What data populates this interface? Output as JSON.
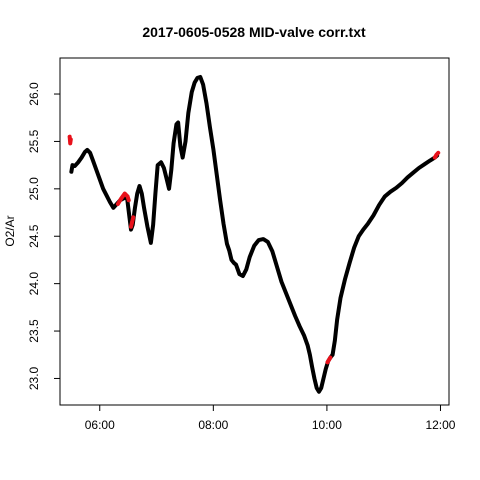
{
  "chart_data": {
    "type": "line",
    "title": "2017-0605-0528 MID-valve corr.txt",
    "xlabel": "",
    "ylabel": "O2/Ar",
    "x_ticks": [
      {
        "value": 6,
        "label": "06:00"
      },
      {
        "value": 8,
        "label": "08:00"
      },
      {
        "value": 10,
        "label": "10:00"
      },
      {
        "value": 12,
        "label": "12:00"
      }
    ],
    "y_ticks": [
      {
        "value": 23.0,
        "label": "23.0"
      },
      {
        "value": 23.5,
        "label": "23.5"
      },
      {
        "value": 24.0,
        "label": "24.0"
      },
      {
        "value": 24.5,
        "label": "24.5"
      },
      {
        "value": 25.0,
        "label": "25.0"
      },
      {
        "value": 25.5,
        "label": "25.5"
      },
      {
        "value": 26.0,
        "label": "26.0"
      }
    ],
    "xlim": [
      5.3,
      12.15
    ],
    "ylim": [
      22.72,
      26.38
    ],
    "grid": false,
    "series": [
      {
        "color": "#000000",
        "points": [
          [
            5.5,
            25.18
          ],
          [
            5.52,
            25.25
          ],
          [
            5.56,
            25.24
          ],
          [
            5.62,
            25.28
          ],
          [
            5.68,
            25.33
          ],
          [
            5.74,
            25.39
          ],
          [
            5.78,
            25.41
          ],
          [
            5.83,
            25.38
          ],
          [
            5.88,
            25.3
          ],
          [
            5.94,
            25.2
          ],
          [
            6.0,
            25.1
          ],
          [
            6.06,
            25.0
          ],
          [
            6.12,
            24.93
          ],
          [
            6.18,
            24.86
          ],
          [
            6.24,
            24.8
          ],
          [
            6.3,
            24.84
          ],
          [
            6.36,
            24.88
          ],
          [
            6.42,
            24.9
          ],
          [
            6.48,
            24.91
          ],
          [
            6.55,
            24.57
          ],
          [
            6.58,
            24.62
          ],
          [
            6.62,
            24.8
          ],
          [
            6.66,
            24.95
          ],
          [
            6.7,
            25.03
          ],
          [
            6.74,
            24.95
          ],
          [
            6.78,
            24.8
          ],
          [
            6.84,
            24.6
          ],
          [
            6.9,
            24.43
          ],
          [
            6.94,
            24.62
          ],
          [
            6.98,
            24.95
          ],
          [
            7.02,
            25.25
          ],
          [
            7.08,
            25.28
          ],
          [
            7.13,
            25.22
          ],
          [
            7.18,
            25.1
          ],
          [
            7.22,
            25.0
          ],
          [
            7.26,
            25.2
          ],
          [
            7.3,
            25.48
          ],
          [
            7.35,
            25.68
          ],
          [
            7.38,
            25.7
          ],
          [
            7.42,
            25.45
          ],
          [
            7.46,
            25.33
          ],
          [
            7.51,
            25.5
          ],
          [
            7.56,
            25.8
          ],
          [
            7.62,
            26.02
          ],
          [
            7.67,
            26.12
          ],
          [
            7.72,
            26.17
          ],
          [
            7.77,
            26.18
          ],
          [
            7.82,
            26.1
          ],
          [
            7.88,
            25.9
          ],
          [
            7.94,
            25.65
          ],
          [
            8.0,
            25.42
          ],
          [
            8.06,
            25.15
          ],
          [
            8.12,
            24.88
          ],
          [
            8.18,
            24.63
          ],
          [
            8.24,
            24.42
          ],
          [
            8.28,
            24.35
          ],
          [
            8.32,
            24.25
          ],
          [
            8.36,
            24.22
          ],
          [
            8.4,
            24.2
          ],
          [
            8.46,
            24.1
          ],
          [
            8.52,
            24.08
          ],
          [
            8.58,
            24.15
          ],
          [
            8.64,
            24.28
          ],
          [
            8.72,
            24.4
          ],
          [
            8.8,
            24.46
          ],
          [
            8.88,
            24.47
          ],
          [
            8.96,
            24.44
          ],
          [
            9.04,
            24.34
          ],
          [
            9.12,
            24.18
          ],
          [
            9.2,
            24.02
          ],
          [
            9.28,
            23.9
          ],
          [
            9.36,
            23.78
          ],
          [
            9.44,
            23.66
          ],
          [
            9.52,
            23.55
          ],
          [
            9.6,
            23.45
          ],
          [
            9.66,
            23.35
          ],
          [
            9.7,
            23.25
          ],
          [
            9.74,
            23.12
          ],
          [
            9.78,
            23.0
          ],
          [
            9.82,
            22.9
          ],
          [
            9.86,
            22.86
          ],
          [
            9.9,
            22.9
          ],
          [
            9.94,
            23.0
          ],
          [
            9.98,
            23.1
          ],
          [
            10.02,
            23.18
          ],
          [
            10.06,
            23.22
          ],
          [
            10.1,
            23.25
          ],
          [
            10.14,
            23.4
          ],
          [
            10.18,
            23.62
          ],
          [
            10.24,
            23.85
          ],
          [
            10.32,
            24.05
          ],
          [
            10.4,
            24.22
          ],
          [
            10.48,
            24.38
          ],
          [
            10.56,
            24.5
          ],
          [
            10.64,
            24.57
          ],
          [
            10.72,
            24.63
          ],
          [
            10.82,
            24.72
          ],
          [
            10.92,
            24.83
          ],
          [
            11.02,
            24.92
          ],
          [
            11.12,
            24.97
          ],
          [
            11.22,
            25.01
          ],
          [
            11.32,
            25.06
          ],
          [
            11.42,
            25.12
          ],
          [
            11.52,
            25.17
          ],
          [
            11.62,
            25.22
          ],
          [
            11.72,
            25.26
          ],
          [
            11.82,
            25.3
          ],
          [
            11.9,
            25.33
          ],
          [
            11.94,
            25.35
          ]
        ]
      },
      {
        "color": "#e8111b",
        "points": [
          [
            5.47,
            25.55
          ],
          [
            5.48,
            25.48
          ],
          [
            5.49,
            25.52
          ]
        ]
      },
      {
        "color": "#e8111b",
        "points": [
          [
            6.32,
            24.84
          ],
          [
            6.38,
            24.9
          ],
          [
            6.44,
            24.95
          ],
          [
            6.49,
            24.92
          ],
          [
            6.51,
            24.88
          ]
        ]
      },
      {
        "color": "#e8111b",
        "points": [
          [
            6.55,
            24.6
          ],
          [
            6.57,
            24.65
          ],
          [
            6.59,
            24.7
          ]
        ]
      },
      {
        "color": "#e8111b",
        "points": [
          [
            10.01,
            23.17
          ],
          [
            10.04,
            23.2
          ],
          [
            10.06,
            23.22
          ]
        ]
      },
      {
        "color": "#e8111b",
        "points": [
          [
            11.9,
            25.33
          ],
          [
            11.93,
            25.36
          ],
          [
            11.96,
            25.38
          ]
        ]
      }
    ]
  }
}
